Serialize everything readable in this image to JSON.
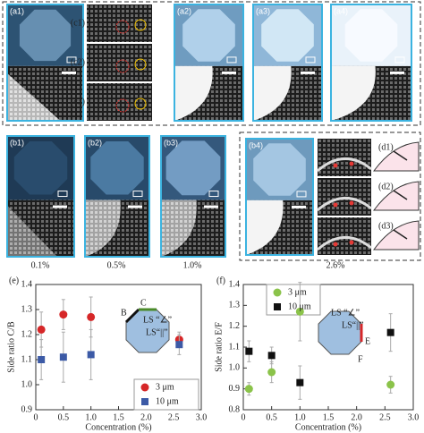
{
  "panels": {
    "labels": [
      "(a1)",
      "(a2)",
      "(a3)",
      "(a4)",
      "(c1)",
      "(c2)",
      "(c3)",
      "(b1)",
      "(b2)",
      "(b3)",
      "(b4)",
      "(d1)",
      "(d2)",
      "(d3)"
    ],
    "concentrations": [
      "0.1%",
      "0.5%",
      "1.0%",
      "2.6%"
    ]
  },
  "chart_data": [
    {
      "type": "scatter",
      "panel_label": "(e)",
      "x_label": "Concentration (%)",
      "y_label": "Side ratio C/B",
      "xlim": [
        0,
        3.0
      ],
      "xticks": [
        0,
        0.5,
        {
          "value": 1.0,
          "label": "1.0"
        },
        1.5,
        {
          "value": 2.0,
          "label": "2.0"
        },
        2.5,
        {
          "value": 3.0,
          "label": "3.0"
        }
      ],
      "ylim": [
        0.9,
        1.4
      ],
      "yticks": [
        0.9,
        {
          "value": 1.0,
          "label": "1.0"
        },
        1.1,
        1.2,
        1.3,
        1.4
      ],
      "annotations": [
        "B",
        "C",
        "LS “∠”",
        "LS“||”"
      ],
      "series": [
        {
          "name": "3 μm",
          "color": "#d62728",
          "marker": "circle",
          "x": [
            0.1,
            0.5,
            1.0,
            2.6
          ],
          "values": [
            1.22,
            1.28,
            1.27,
            1.18
          ],
          "errors": [
            0.07,
            0.06,
            0.08,
            0.03
          ]
        },
        {
          "name": "10 μm",
          "color": "#3c5aa6",
          "marker": "square",
          "x": [
            0.1,
            0.5,
            1.0,
            2.6
          ],
          "values": [
            1.1,
            1.11,
            1.12,
            1.16
          ],
          "errors": [
            0.08,
            0.1,
            0.1,
            0.04
          ]
        }
      ]
    },
    {
      "type": "scatter",
      "panel_label": "(f)",
      "x_label": "Concentration (%)",
      "y_label": "Side ratio E/F",
      "xlim": [
        0,
        3.0
      ],
      "xticks": [
        0,
        0.5,
        {
          "value": 1.0,
          "label": "1.0"
        },
        1.5,
        {
          "value": 2.0,
          "label": "2.0"
        },
        2.5,
        {
          "value": 3.0,
          "label": "3.0"
        }
      ],
      "ylim": [
        0.8,
        1.4
      ],
      "yticks": [
        0.8,
        0.9,
        {
          "value": 1.0,
          "label": "1.0"
        },
        1.1,
        1.2,
        1.3,
        1.4
      ],
      "annotations": [
        "LS “∠”",
        "LS“||”",
        "E",
        "F"
      ],
      "series": [
        {
          "name": "3 μm",
          "color": "#8bc34a",
          "marker": "circle",
          "x": [
            0.1,
            0.5,
            1.0,
            2.6
          ],
          "values": [
            0.9,
            0.98,
            1.27,
            0.92
          ],
          "errors": [
            0.03,
            0.05,
            0.14,
            0.04
          ]
        },
        {
          "name": "10 μm",
          "color": "#111111",
          "marker": "square",
          "x": [
            0.1,
            0.5,
            1.0,
            2.6
          ],
          "values": [
            1.08,
            1.06,
            0.93,
            1.17
          ],
          "errors": [
            0.05,
            0.04,
            0.08,
            0.09
          ]
        }
      ]
    }
  ]
}
